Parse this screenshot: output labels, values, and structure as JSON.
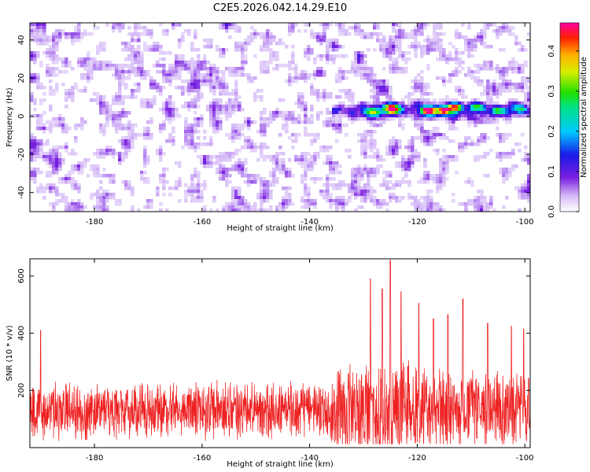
{
  "title": "C2E5.2026.042.14.29.E10",
  "chart_data": [
    {
      "type": "heatmap",
      "title": "C2E5.2026.042.14.29.E10",
      "xlabel": "Height of straight line (km)",
      "ylabel": "Frequency (Hz)",
      "xlim": [
        -192,
        -99
      ],
      "ylim": [
        -50,
        49
      ],
      "x_ticks": [
        -180,
        -160,
        -140,
        -120,
        -100
      ],
      "x_tick_labels": [
        "-180",
        "-160",
        "-140",
        "-120",
        "-100"
      ],
      "y_ticks": [
        40,
        20,
        0,
        -20,
        -40
      ],
      "y_tick_labels": [
        "40",
        "20",
        "0",
        "-20",
        "-40"
      ],
      "value_range": [
        0,
        0.47
      ],
      "colorbar": {
        "label": "Normalized spectral amplitude",
        "ticks": [
          0.0,
          0.1,
          0.2,
          0.3,
          0.4
        ],
        "tick_labels": [
          "0.0",
          "0.1",
          "0.2",
          "0.3",
          "0.4"
        ]
      },
      "noise_level": 0.09,
      "signal_band": {
        "x_range": [
          -136,
          -99
        ],
        "center_frequency_hz": 3,
        "peaks": [
          {
            "x": -128,
            "y": 2,
            "value": 0.3
          },
          {
            "x": -125,
            "y": 5,
            "value": 0.3
          },
          {
            "x": -124.5,
            "y": 3,
            "value": 0.35
          },
          {
            "x": -118,
            "y": 3,
            "value": 0.45
          },
          {
            "x": -115,
            "y": 3,
            "value": 0.42
          },
          {
            "x": -113,
            "y": 5,
            "value": 0.38
          },
          {
            "x": -109,
            "y": 5,
            "value": 0.25
          },
          {
            "x": -105,
            "y": 3,
            "value": 0.2
          },
          {
            "x": -101,
            "y": 4,
            "value": 0.15
          }
        ]
      }
    },
    {
      "type": "line",
      "xlabel": "Height of straight line (km)",
      "ylabel": "SNR (10 * v/v)",
      "xlim": [
        -192,
        -99
      ],
      "ylim": [
        0,
        660
      ],
      "x_ticks": [
        -180,
        -160,
        -140,
        -120,
        -100
      ],
      "x_tick_labels": [
        "-180",
        "-160",
        "-140",
        "-120",
        "-100"
      ],
      "y_ticks": [
        200,
        400,
        600
      ],
      "y_tick_labels": [
        "200",
        "400",
        "600"
      ],
      "series": [
        {
          "name": "SNR",
          "color": "#ee2222",
          "baseline": 130,
          "noise_amplitude": 110,
          "elevated_region_km": [
            -136,
            -99
          ],
          "peaks": [
            {
              "x": -125,
              "y": 655
            },
            {
              "x": -126.5,
              "y": 555
            },
            {
              "x": -128.7,
              "y": 590
            },
            {
              "x": -123,
              "y": 545
            },
            {
              "x": -119.7,
              "y": 505
            },
            {
              "x": -117,
              "y": 450
            },
            {
              "x": -114.3,
              "y": 465
            },
            {
              "x": -111.5,
              "y": 520
            },
            {
              "x": -106.9,
              "y": 435
            },
            {
              "x": -102.5,
              "y": 425
            },
            {
              "x": -100.2,
              "y": 415
            },
            {
              "x": -190,
              "y": 410
            }
          ]
        }
      ]
    }
  ]
}
